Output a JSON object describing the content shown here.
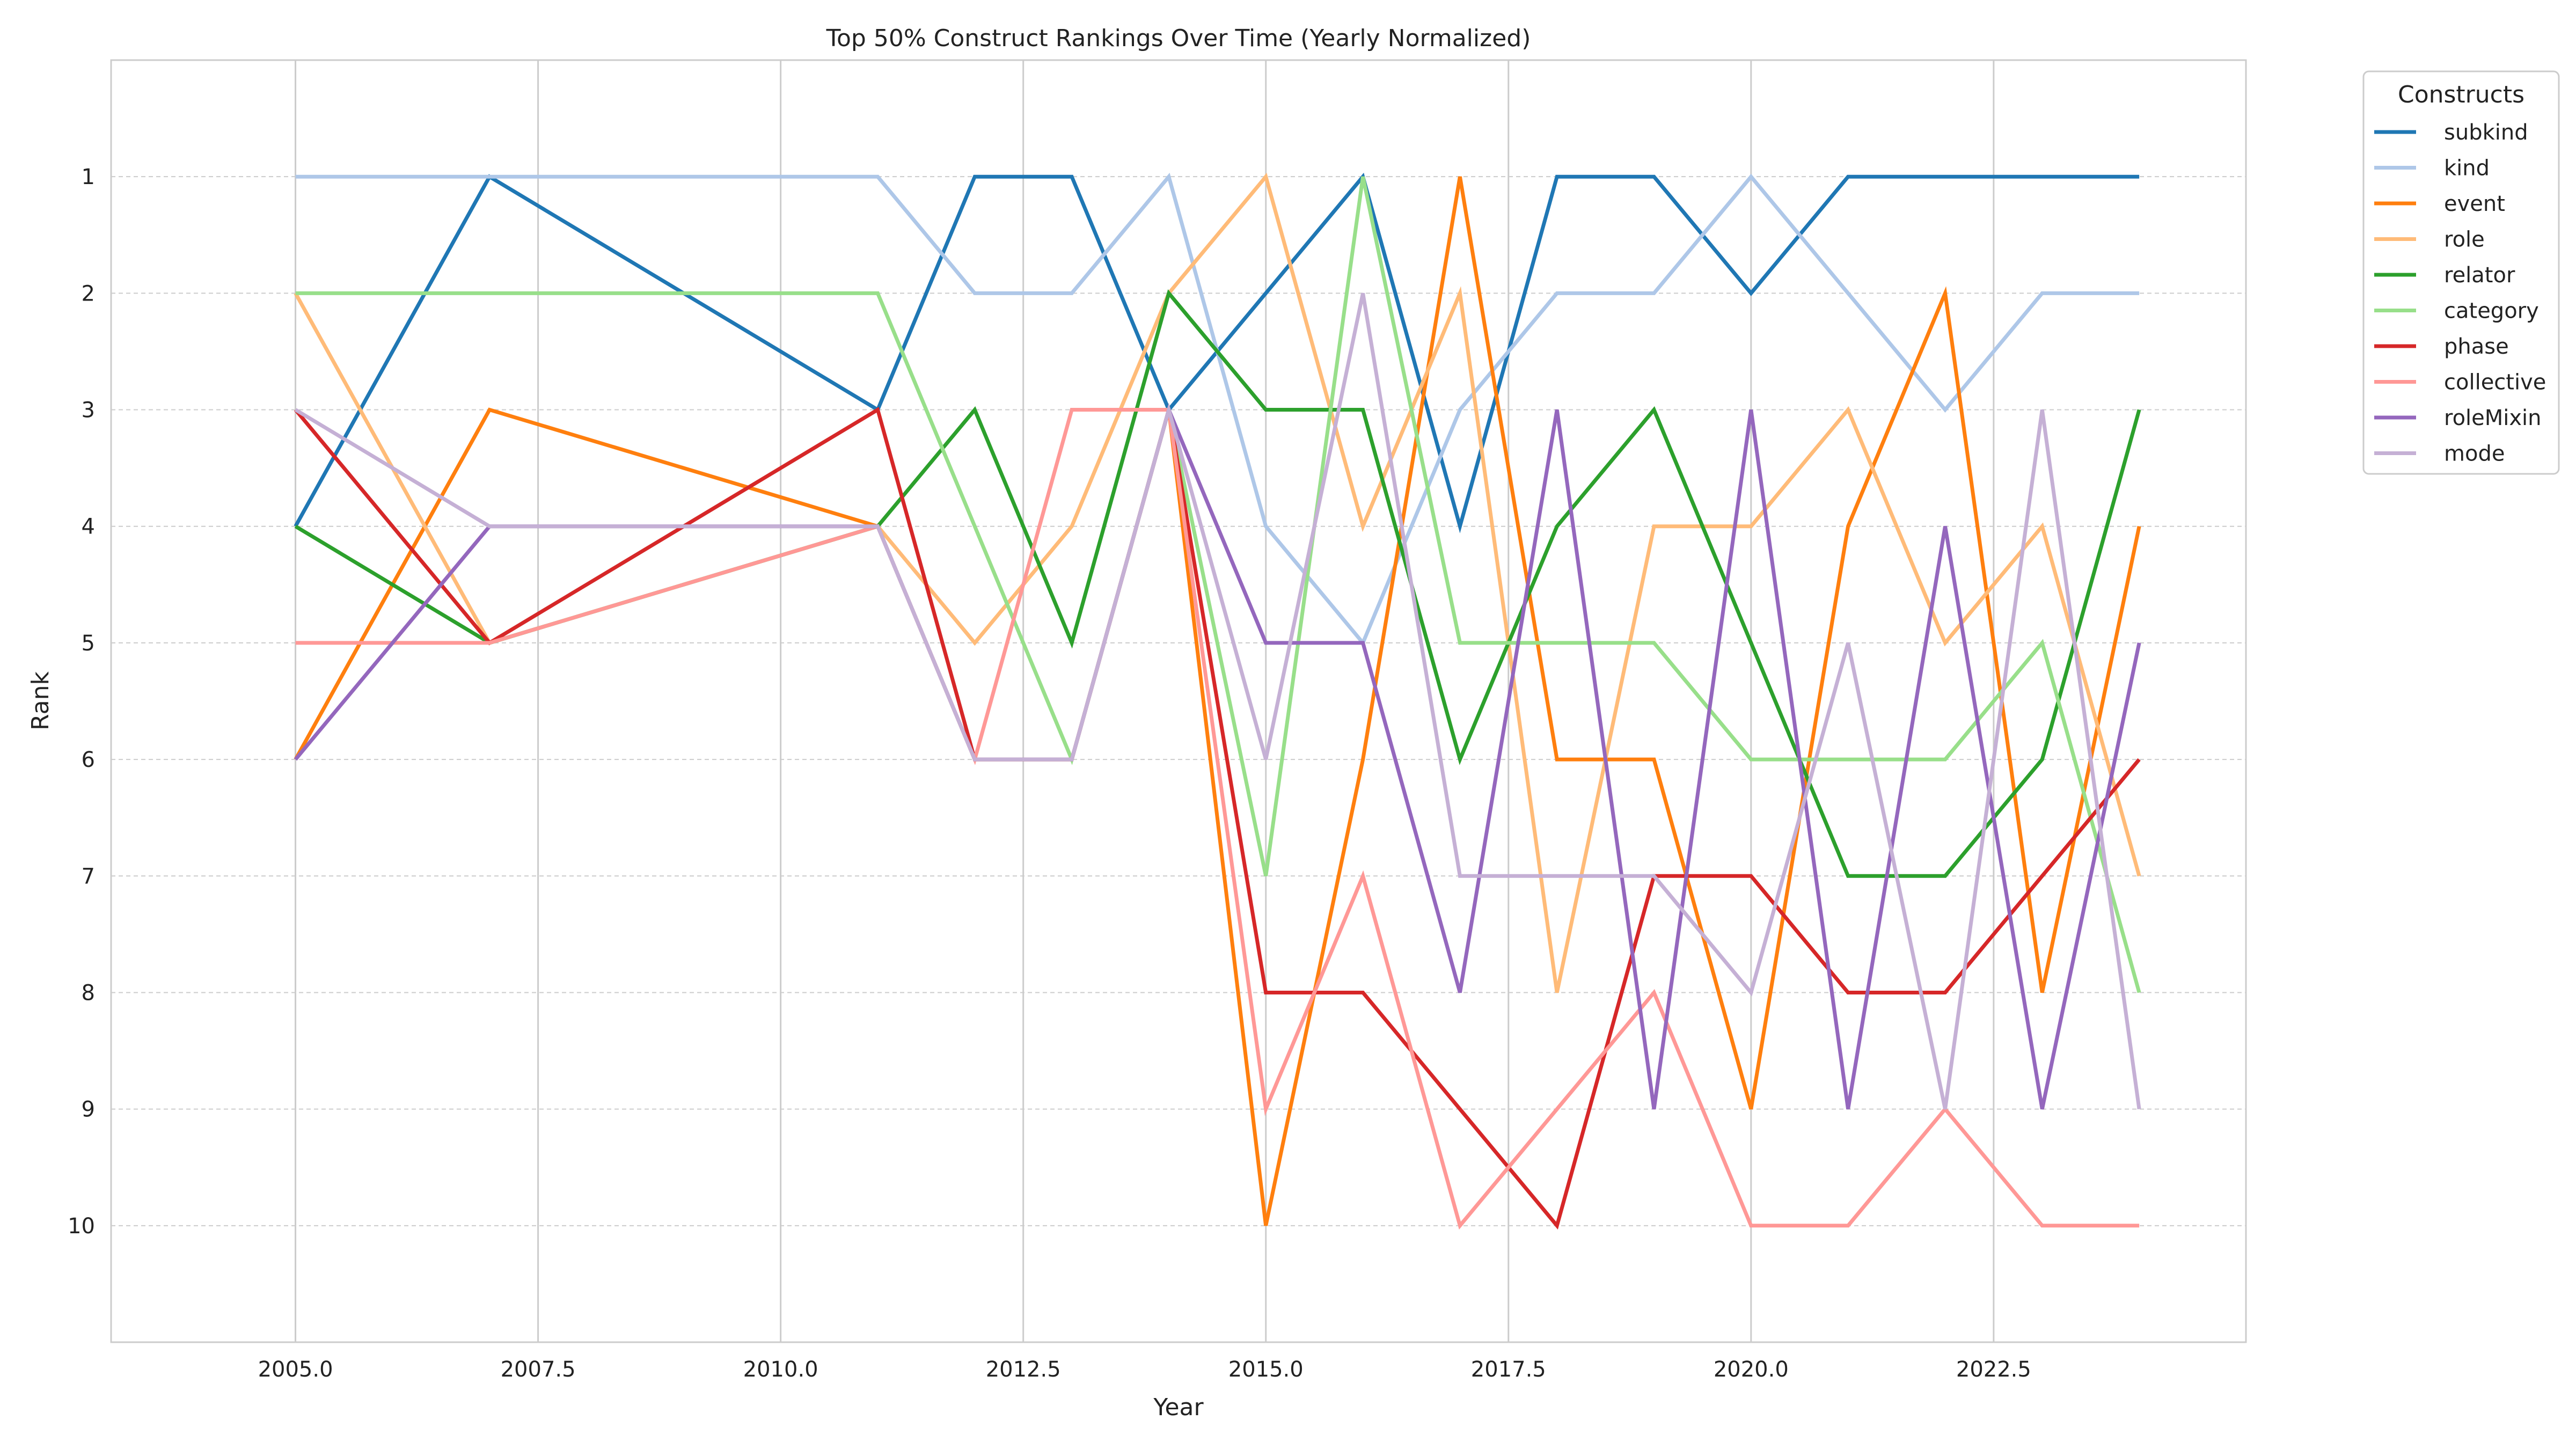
{
  "chart_data": {
    "type": "line",
    "title": "Top 50% Construct Rankings Over Time (Yearly Normalized)",
    "xlabel": "Year",
    "ylabel": "Rank",
    "x": [
      2005,
      2007,
      2011,
      2012,
      2013,
      2014,
      2015,
      2016,
      2017,
      2018,
      2019,
      2020,
      2021,
      2022,
      2023,
      2024
    ],
    "xlim": [
      2003.1,
      2025.1
    ],
    "ylim": [
      11,
      0
    ],
    "y_inverted": true,
    "grid": true,
    "x_ticks": [
      "2005.0",
      "2007.5",
      "2010.0",
      "2012.5",
      "2015.0",
      "2017.5",
      "2020.0",
      "2022.5"
    ],
    "y_ticks": [
      "1",
      "2",
      "3",
      "4",
      "5",
      "6",
      "7",
      "8",
      "9",
      "10"
    ],
    "legend": {
      "title": "Constructs",
      "placement": "outside-top-right"
    },
    "series": [
      {
        "name": "subkind",
        "color": "#1f77b4",
        "values": [
          4,
          1,
          3,
          1,
          1,
          3,
          2,
          1,
          4,
          1,
          1,
          2,
          1,
          1,
          1,
          1
        ]
      },
      {
        "name": "kind",
        "color": "#aec7e8",
        "values": [
          1,
          1,
          1,
          2,
          2,
          1,
          4,
          5,
          3,
          2,
          2,
          1,
          2,
          3,
          2,
          2
        ]
      },
      {
        "name": "event",
        "color": "#ff7f0e",
        "values": [
          6,
          3,
          4,
          6,
          6,
          3,
          10,
          6,
          1,
          6,
          6,
          9,
          4,
          2,
          8,
          4
        ]
      },
      {
        "name": "role",
        "color": "#ffbb78",
        "values": [
          2,
          5,
          4,
          5,
          4,
          2,
          1,
          4,
          2,
          8,
          4,
          4,
          3,
          5,
          4,
          7
        ]
      },
      {
        "name": "relator",
        "color": "#2ca02c",
        "values": [
          4,
          5,
          4,
          3,
          5,
          2,
          3,
          3,
          6,
          4,
          3,
          5,
          7,
          7,
          6,
          3
        ]
      },
      {
        "name": "category",
        "color": "#98df8a",
        "values": [
          2,
          2,
          2,
          4,
          6,
          3,
          7,
          1,
          5,
          5,
          5,
          6,
          6,
          6,
          5,
          8
        ]
      },
      {
        "name": "phase",
        "color": "#d62728",
        "values": [
          3,
          5,
          3,
          6,
          6,
          3,
          8,
          8,
          9,
          10,
          7,
          7,
          8,
          8,
          7,
          6
        ]
      },
      {
        "name": "collective",
        "color": "#ff9896",
        "values": [
          5,
          5,
          4,
          6,
          3,
          3,
          9,
          7,
          10,
          9,
          8,
          10,
          10,
          9,
          10,
          10
        ]
      },
      {
        "name": "roleMixin",
        "color": "#9467bd",
        "values": [
          6,
          4,
          4,
          6,
          6,
          3,
          5,
          5,
          8,
          3,
          9,
          3,
          9,
          4,
          9,
          5
        ]
      },
      {
        "name": "mode",
        "color": "#c5b0d5",
        "values": [
          3,
          4,
          4,
          6,
          6,
          3,
          6,
          2,
          7,
          7,
          7,
          8,
          5,
          9,
          3,
          9
        ]
      }
    ]
  }
}
